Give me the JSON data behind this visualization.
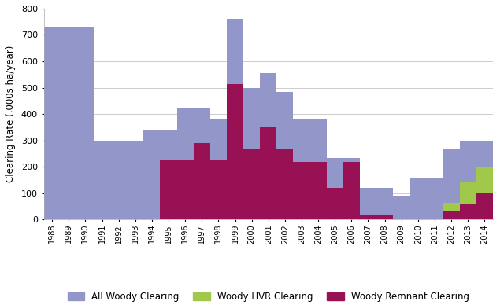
{
  "years": [
    1988,
    1989,
    1990,
    1991,
    1992,
    1993,
    1994,
    1995,
    1996,
    1997,
    1998,
    1999,
    2000,
    2001,
    2002,
    2003,
    2004,
    2005,
    2006,
    2007,
    2008,
    2009,
    2010,
    2011,
    2012,
    2013,
    2014
  ],
  "all_woody": [
    730,
    730,
    730,
    295,
    295,
    295,
    340,
    340,
    420,
    420,
    383,
    760,
    500,
    555,
    485,
    383,
    383,
    235,
    235,
    120,
    120,
    90,
    155,
    155,
    270,
    300,
    300
  ],
  "hvr_clearing": [
    0,
    0,
    0,
    0,
    0,
    0,
    0,
    0,
    0,
    0,
    0,
    0,
    0,
    0,
    0,
    0,
    0,
    0,
    0,
    0,
    0,
    0,
    0,
    0,
    35,
    80,
    100
  ],
  "remnant_clearing": [
    0,
    0,
    0,
    0,
    0,
    0,
    0,
    228,
    228,
    290,
    228,
    515,
    265,
    350,
    265,
    220,
    220,
    120,
    220,
    15,
    15,
    0,
    0,
    0,
    30,
    60,
    100
  ],
  "all_woody_color": "#9396c8",
  "hvr_color": "#a0c84a",
  "remnant_color": "#991155",
  "background_color": "#ffffff",
  "grid_color": "#cccccc",
  "ylabel": "Clearing Rate (,000s ha/year)",
  "ylim": [
    0,
    800
  ],
  "yticks": [
    0,
    100,
    200,
    300,
    400,
    500,
    600,
    700,
    800
  ],
  "legend_labels": [
    "All Woody Clearing",
    "Woody HVR Clearing",
    "Woody Remnant Clearing"
  ],
  "legend_fontsize": 8.5
}
